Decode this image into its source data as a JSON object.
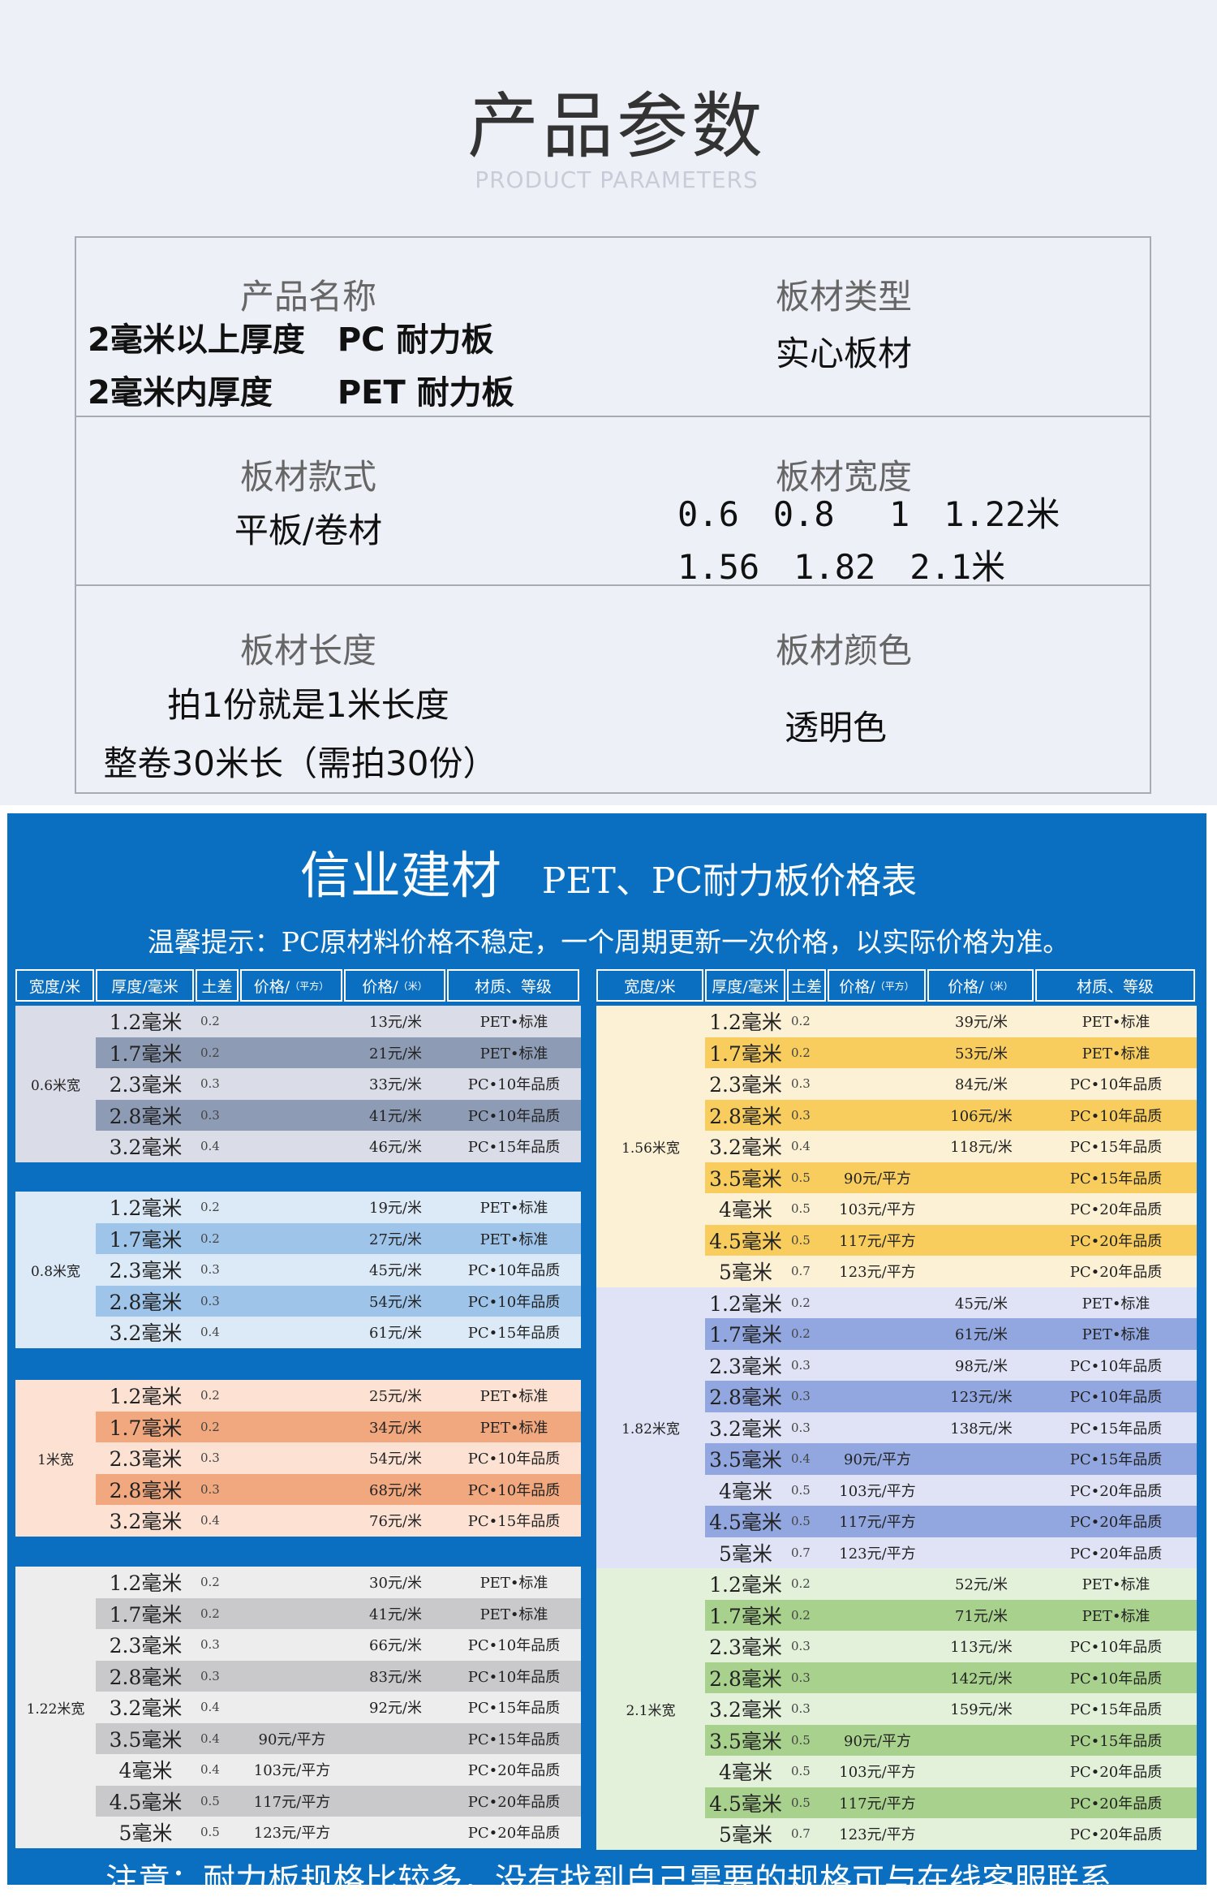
{
  "header": {
    "title": "产品参数",
    "subtitle": "PRODUCT PARAMETERS"
  },
  "params": {
    "name_label": "产品名称",
    "name_lines": [
      "2毫米以上厚度　PC 耐力板",
      "2毫米内厚度　　PET 耐力板"
    ],
    "type_label": "板材类型",
    "type_value": "实心板材",
    "style_label": "板材款式",
    "style_value": "平板/卷材",
    "width_label": "板材宽度",
    "width_lines": [
      "0.6　0.8　 1　1.22米",
      "1.56　1.82　2.1米"
    ],
    "length_label": "板材长度",
    "length_lines": [
      "拍1份就是1米长度",
      "整卷30米长（需拍30份）"
    ],
    "color_label": "板材颜色",
    "color_value": "透明色"
  },
  "price": {
    "brand": "信业建材",
    "title": "PET、PC耐力板价格表",
    "notice": "温馨提示：PC原材料价格不稳定，一个周期更新一次价格，以实际价格为准。",
    "footer": "注意：耐力板规格比较多，没有找到自己需要的规格可与在线客服联系",
    "columns": [
      "宽度/米",
      "厚度/毫米",
      "土差",
      "价格/",
      "（平方）",
      "价格/",
      "（米）",
      "材质、等级"
    ],
    "left_groups": [
      {
        "width": "0.6米宽",
        "light": "#dadde7",
        "dark": "#8e9bb5",
        "rows": [
          [
            "1.2毫米",
            "0.2",
            "",
            "13元/米",
            "PET•标准"
          ],
          [
            "1.7毫米",
            "0.2",
            "",
            "21元/米",
            "PET•标准"
          ],
          [
            "2.3毫米",
            "0.3",
            "",
            "33元/米",
            "PC•10年品质"
          ],
          [
            "2.8毫米",
            "0.3",
            "",
            "41元/米",
            "PC•10年品质"
          ],
          [
            "3.2毫米",
            "0.4",
            "",
            "46元/米",
            "PC•15年品质"
          ]
        ]
      },
      {
        "width": "0.8米宽",
        "light": "#dceaf8",
        "dark": "#9fc4ea",
        "rows": [
          [
            "1.2毫米",
            "0.2",
            "",
            "19元/米",
            "PET•标准"
          ],
          [
            "1.7毫米",
            "0.2",
            "",
            "27元/米",
            "PET•标准"
          ],
          [
            "2.3毫米",
            "0.3",
            "",
            "45元/米",
            "PC•10年品质"
          ],
          [
            "2.8毫米",
            "0.3",
            "",
            "54元/米",
            "PC•10年品质"
          ],
          [
            "3.2毫米",
            "0.4",
            "",
            "61元/米",
            "PC•15年品质"
          ]
        ]
      },
      {
        "width": "1米宽",
        "light": "#fde1d3",
        "dark": "#f1a87e",
        "rows": [
          [
            "1.2毫米",
            "0.2",
            "",
            "25元/米",
            "PET•标准"
          ],
          [
            "1.7毫米",
            "0.2",
            "",
            "34元/米",
            "PET•标准"
          ],
          [
            "2.3毫米",
            "0.3",
            "",
            "54元/米",
            "PC•10年品质"
          ],
          [
            "2.8毫米",
            "0.3",
            "",
            "68元/米",
            "PC•10年品质"
          ],
          [
            "3.2毫米",
            "0.4",
            "",
            "76元/米",
            "PC•15年品质"
          ]
        ]
      },
      {
        "width": "1.22米宽",
        "light": "#ededee",
        "dark": "#c9c9cb",
        "rows": [
          [
            "1.2毫米",
            "0.2",
            "",
            "30元/米",
            "PET•标准"
          ],
          [
            "1.7毫米",
            "0.2",
            "",
            "41元/米",
            "PET•标准"
          ],
          [
            "2.3毫米",
            "0.3",
            "",
            "66元/米",
            "PC•10年品质"
          ],
          [
            "2.8毫米",
            "0.3",
            "",
            "83元/米",
            "PC•10年品质"
          ],
          [
            "3.2毫米",
            "0.4",
            "",
            "92元/米",
            "PC•15年品质"
          ],
          [
            "3.5毫米",
            "0.4",
            "90元/平方",
            "",
            "PC•15年品质"
          ],
          [
            "4毫米",
            "0.4",
            "103元/平方",
            "",
            "PC•20年品质"
          ],
          [
            "4.5毫米",
            "0.5",
            "117元/平方",
            "",
            "PC•20年品质"
          ],
          [
            "5毫米",
            "0.5",
            "123元/平方",
            "",
            "PC•20年品质"
          ]
        ]
      }
    ],
    "right_groups": [
      {
        "width": "1.56米宽",
        "light": "#fdf1d5",
        "dark": "#f8cd5d",
        "rows": [
          [
            "1.2毫米",
            "0.2",
            "",
            "39元/米",
            "PET•标准"
          ],
          [
            "1.7毫米",
            "0.2",
            "",
            "53元/米",
            "PET•标准"
          ],
          [
            "2.3毫米",
            "0.3",
            "",
            "84元/米",
            "PC•10年品质"
          ],
          [
            "2.8毫米",
            "0.3",
            "",
            "106元/米",
            "PC•10年品质"
          ],
          [
            "3.2毫米",
            "0.4",
            "",
            "118元/米",
            "PC•15年品质"
          ],
          [
            "3.5毫米",
            "0.5",
            "90元/平方",
            "",
            "PC•15年品质"
          ],
          [
            "4毫米",
            "0.5",
            "103元/平方",
            "",
            "PC•20年品质"
          ],
          [
            "4.5毫米",
            "0.5",
            "117元/平方",
            "",
            "PC•20年品质"
          ],
          [
            "5毫米",
            "0.7",
            "123元/平方",
            "",
            "PC•20年品质"
          ]
        ]
      },
      {
        "width": "1.82米宽",
        "light": "#dfe3f5",
        "dark": "#92a7df",
        "rows": [
          [
            "1.2毫米",
            "0.2",
            "",
            "45元/米",
            "PET•标准"
          ],
          [
            "1.7毫米",
            "0.2",
            "",
            "61元/米",
            "PET•标准"
          ],
          [
            "2.3毫米",
            "0.3",
            "",
            "98元/米",
            "PC•10年品质"
          ],
          [
            "2.8毫米",
            "0.3",
            "",
            "123元/米",
            "PC•10年品质"
          ],
          [
            "3.2毫米",
            "0.3",
            "",
            "138元/米",
            "PC•15年品质"
          ],
          [
            "3.5毫米",
            "0.4",
            "90元/平方",
            "",
            "PC•15年品质"
          ],
          [
            "4毫米",
            "0.5",
            "103元/平方",
            "",
            "PC•20年品质"
          ],
          [
            "4.5毫米",
            "0.5",
            "117元/平方",
            "",
            "PC•20年品质"
          ],
          [
            "5毫米",
            "0.7",
            "123元/平方",
            "",
            "PC•20年品质"
          ]
        ]
      },
      {
        "width": "2.1米宽",
        "light": "#e3f0da",
        "dark": "#a9d18e",
        "rows": [
          [
            "1.2毫米",
            "0.2",
            "",
            "52元/米",
            "PET•标准"
          ],
          [
            "1.7毫米",
            "0.2",
            "",
            "71元/米",
            "PET•标准"
          ],
          [
            "2.3毫米",
            "0.3",
            "",
            "113元/米",
            "PC•10年品质"
          ],
          [
            "2.8毫米",
            "0.3",
            "",
            "142元/米",
            "PC•10年品质"
          ],
          [
            "3.2毫米",
            "0.3",
            "",
            "159元/米",
            "PC•15年品质"
          ],
          [
            "3.5毫米",
            "0.5",
            "90元/平方",
            "",
            "PC•15年品质"
          ],
          [
            "4毫米",
            "0.5",
            "103元/平方",
            "",
            "PC•20年品质"
          ],
          [
            "4.5毫米",
            "0.5",
            "117元/平方",
            "",
            "PC•20年品质"
          ],
          [
            "5毫米",
            "0.7",
            "123元/平方",
            "",
            "PC•20年品质"
          ]
        ]
      }
    ]
  }
}
